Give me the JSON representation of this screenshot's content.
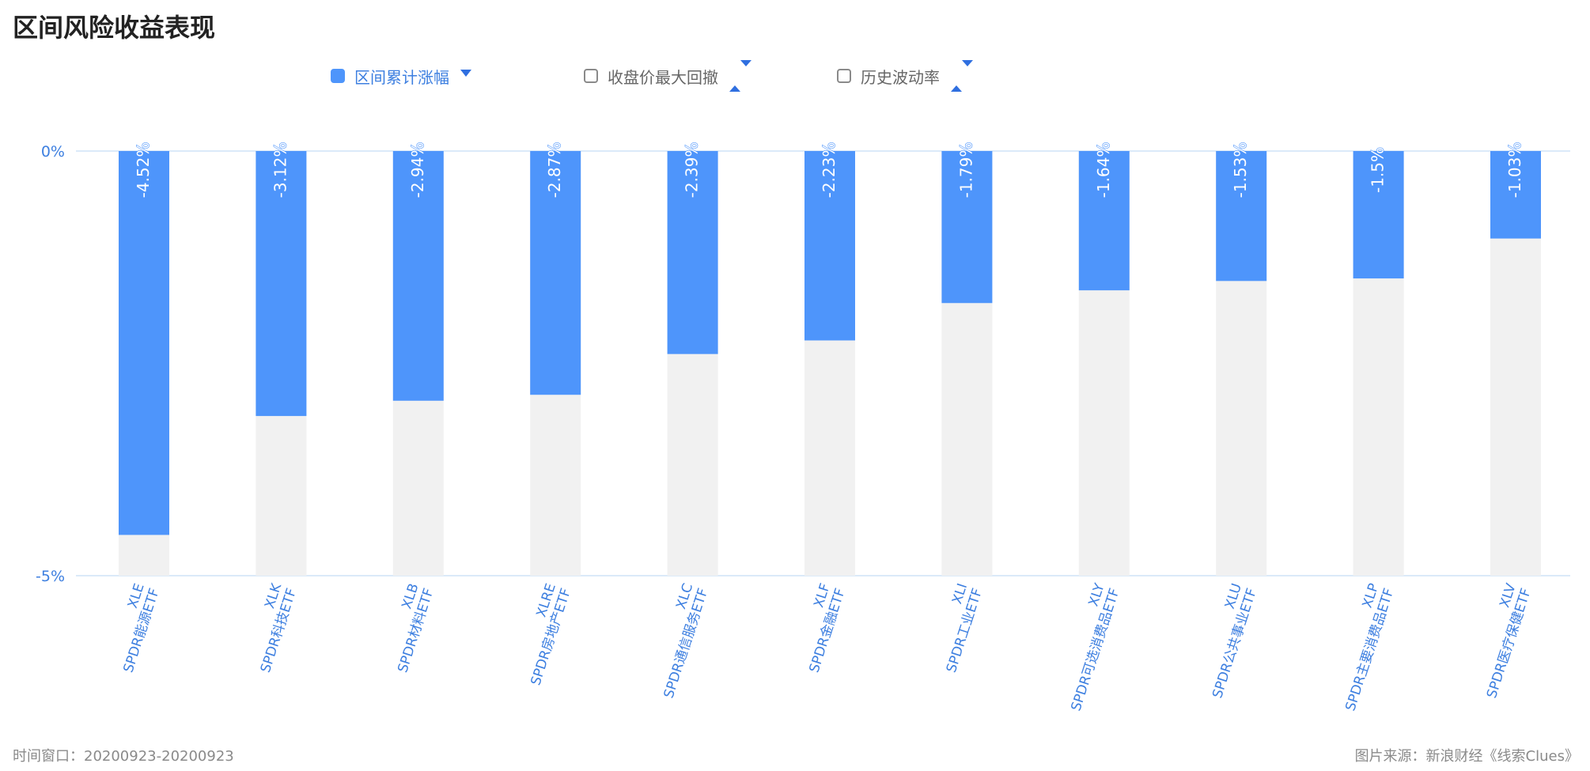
{
  "title": "区间风险收益表现",
  "legend": {
    "items": [
      {
        "label": "区间累计涨幅",
        "checked": true
      },
      {
        "label": "收盘价最大回撤",
        "checked": false
      },
      {
        "label": "历史波动率",
        "checked": false
      }
    ]
  },
  "footer": {
    "time_window": "时间窗口：20200923-20200923",
    "source": "图片来源：新浪财经《线索Clues》"
  },
  "colors": {
    "bar": "#4e95fb",
    "bar_track": "#f1f1f1",
    "axis_text": "#3d7fe0",
    "axis_line": "#cfe3f7"
  },
  "chart_data": {
    "type": "bar",
    "ylim": [
      -5,
      0
    ],
    "y_ticks": [
      {
        "value": 0,
        "label": "0%"
      },
      {
        "value": -5,
        "label": "-5%"
      }
    ],
    "categories": [
      {
        "code": "XLE",
        "name": "SPDR能源ETF"
      },
      {
        "code": "XLK",
        "name": "SPDR科技ETF"
      },
      {
        "code": "XLB",
        "name": "SPDR材料ETF"
      },
      {
        "code": "XLRE",
        "name": "SPDR房地产ETF"
      },
      {
        "code": "XLC",
        "name": "SPDR通信服务ETF"
      },
      {
        "code": "XLF",
        "name": "SPDR金融ETF"
      },
      {
        "code": "XLI",
        "name": "SPDR工业ETF"
      },
      {
        "code": "XLY",
        "name": "SPDR可选消费品ETF"
      },
      {
        "code": "XLU",
        "name": "SPDR公共事业ETF"
      },
      {
        "code": "XLP",
        "name": "SPDR主要消费品ETF"
      },
      {
        "code": "XLV",
        "name": "SPDR医疗保健ETF"
      }
    ],
    "values": [
      -4.52,
      -3.12,
      -2.94,
      -2.87,
      -2.39,
      -2.23,
      -1.79,
      -1.64,
      -1.53,
      -1.5,
      -1.03
    ],
    "value_labels": [
      "-4.52%",
      "-3.12%",
      "-2.94%",
      "-2.87%",
      "-2.39%",
      "-2.23%",
      "-1.79%",
      "-1.64%",
      "-1.53%",
      "-1.5%",
      "-1.03%"
    ],
    "legend_position": "top",
    "grid": false
  }
}
